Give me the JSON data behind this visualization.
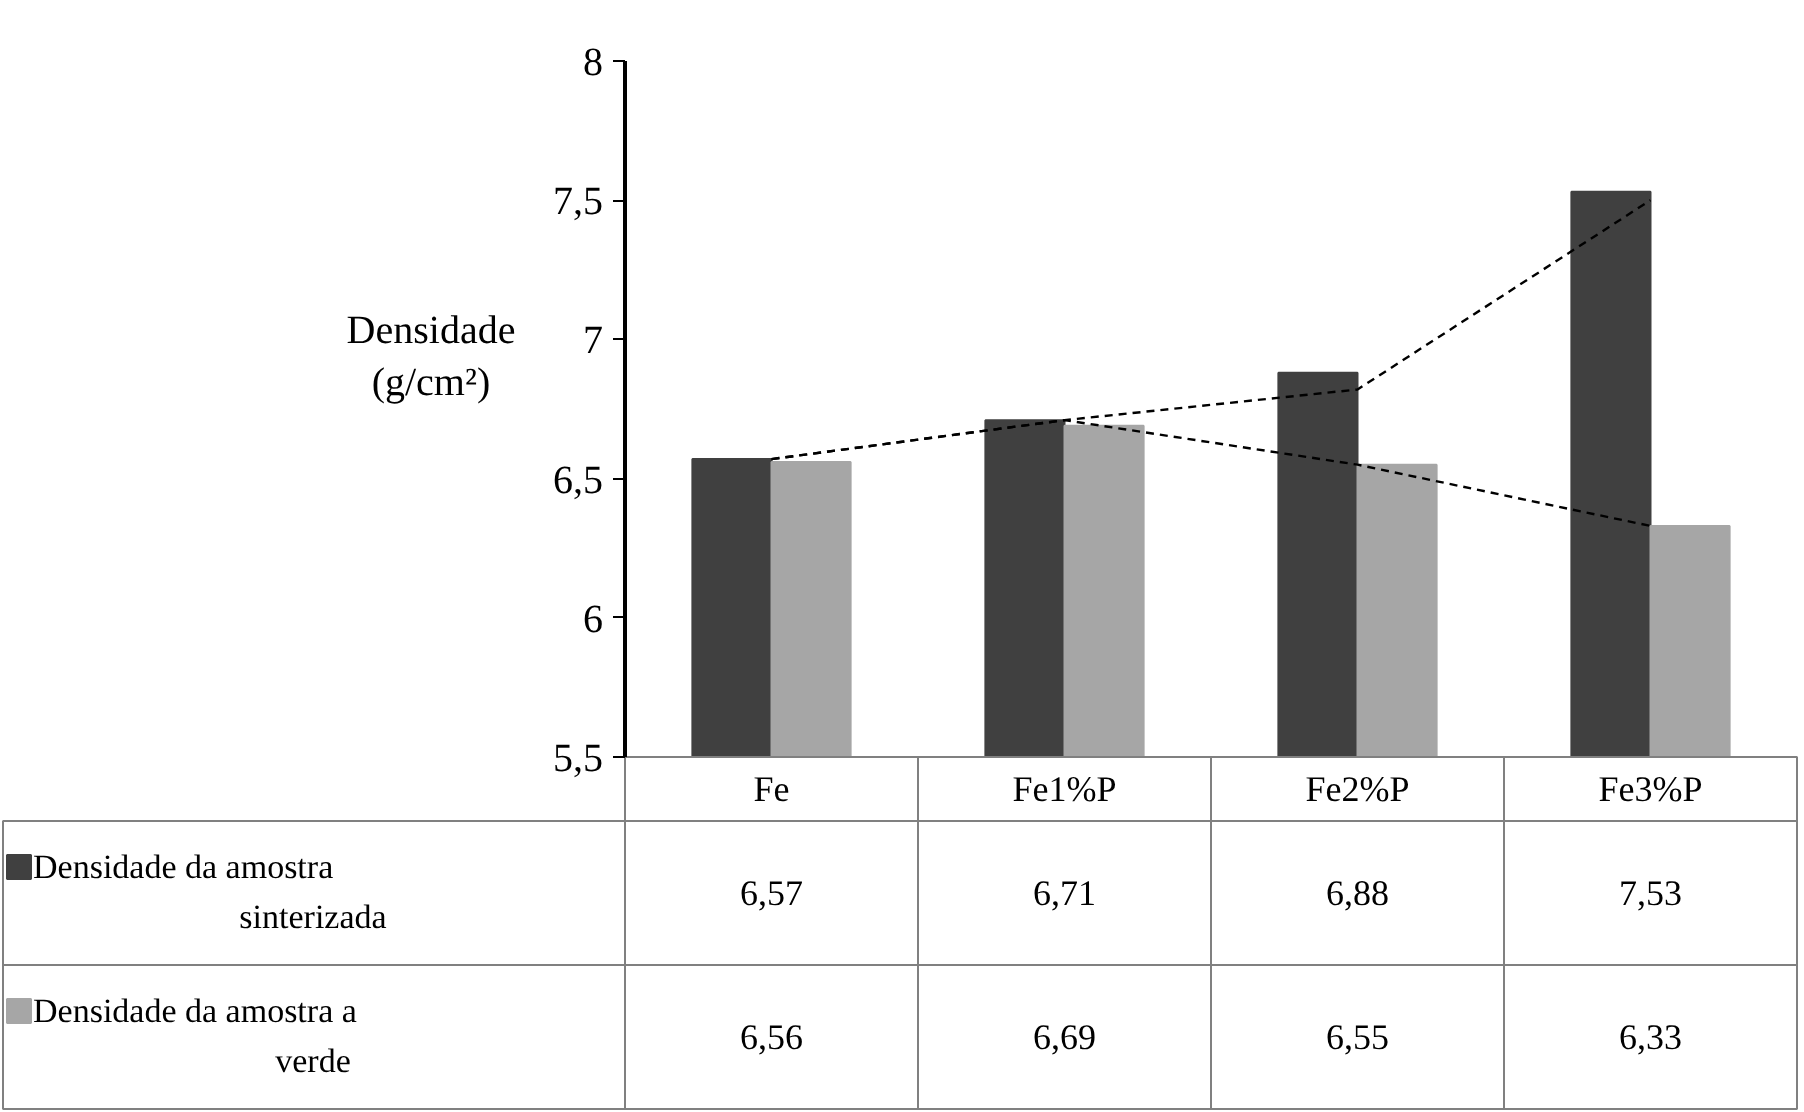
{
  "chart_data": {
    "type": "bar",
    "ylabel": "Densidade (g/cm²)",
    "categories": [
      "Fe",
      "Fe1%P",
      "Fe2%P",
      "Fe3%P"
    ],
    "series": [
      {
        "name": "Densidade da amostra sinterizada",
        "color": "#404040",
        "values": [
          6.57,
          6.71,
          6.88,
          7.53
        ],
        "value_labels": [
          "6,57",
          "6,71",
          "6,88",
          "7,53"
        ]
      },
      {
        "name": "Densidade da amostra a verde",
        "color": "#a6a6a6",
        "values": [
          6.56,
          6.69,
          6.55,
          6.33
        ],
        "value_labels": [
          "6,56",
          "6,69",
          "6,55",
          "6,33"
        ]
      },
      {
        "type": "line",
        "color": "#000000",
        "line_style": "dashed",
        "values": [
          6.57,
          6.71,
          6.82,
          7.5
        ]
      },
      {
        "type": "line",
        "color": "#000000",
        "line_style": "dashed",
        "values": [
          6.57,
          6.71,
          6.55,
          6.33
        ]
      }
    ],
    "ylim": [
      5.5,
      8
    ],
    "yticks": [
      {
        "value": 5.5,
        "label": "5,5"
      },
      {
        "value": 6,
        "label": "6"
      },
      {
        "value": 6.5,
        "label": "6,5"
      },
      {
        "value": 7,
        "label": "7"
      },
      {
        "value": 7.5,
        "label": "7,5"
      },
      {
        "value": 8,
        "label": "8"
      }
    ],
    "grid": false,
    "legend": "bottom"
  }
}
